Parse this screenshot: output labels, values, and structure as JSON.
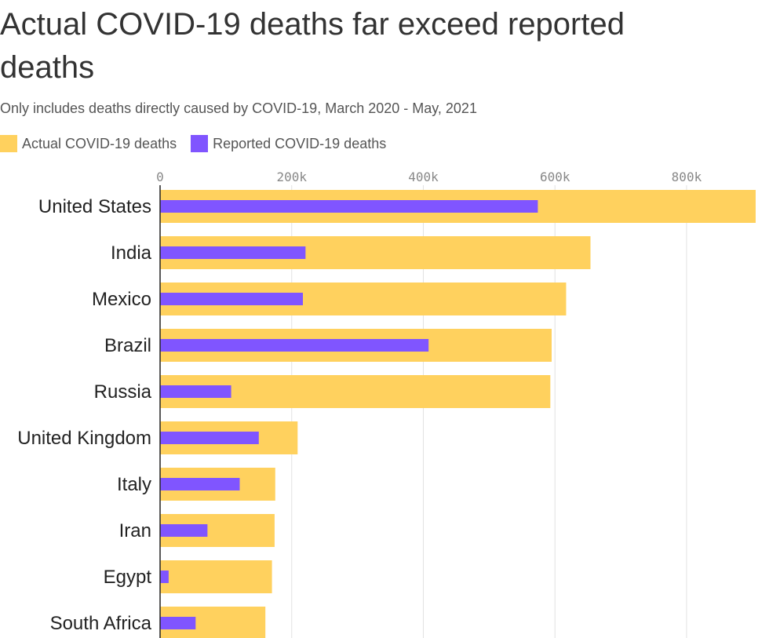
{
  "title": "Actual COVID-19 deaths far exceed reported deaths",
  "subtitle": "Only includes deaths directly caused by COVID-19, March 2020 - May, 2021",
  "colors": {
    "actual": "#FFD15E",
    "reported": "#8055FF",
    "grid": "#e2e2e2",
    "axis": "#222222"
  },
  "chart_data": {
    "type": "bar",
    "orientation": "horizontal",
    "title": "Actual COVID-19 deaths far exceed reported deaths",
    "subtitle": "Only includes deaths directly caused by COVID-19, March 2020 - May, 2021",
    "categories": [
      "United States",
      "India",
      "Mexico",
      "Brazil",
      "Russia",
      "United Kingdom",
      "Italy",
      "Iran",
      "Egypt",
      "South Africa"
    ],
    "series": [
      {
        "name": "Actual COVID-19 deaths",
        "values": [
          905000,
          654000,
          617000,
          595000,
          593000,
          209000,
          175000,
          174000,
          170000,
          160000
        ]
      },
      {
        "name": "Reported COVID-19 deaths",
        "values": [
          574000,
          221000,
          217000,
          408000,
          108000,
          150000,
          121000,
          72000,
          13000,
          54000
        ]
      }
    ],
    "xlim": [
      0,
      905000
    ],
    "xticks": [
      0,
      200000,
      400000,
      600000,
      800000
    ],
    "xtick_labels": [
      "0",
      "200k",
      "400k",
      "600k",
      "800k"
    ],
    "grid": true,
    "legend_position": "top-left",
    "xlabel": "",
    "ylabel": ""
  }
}
